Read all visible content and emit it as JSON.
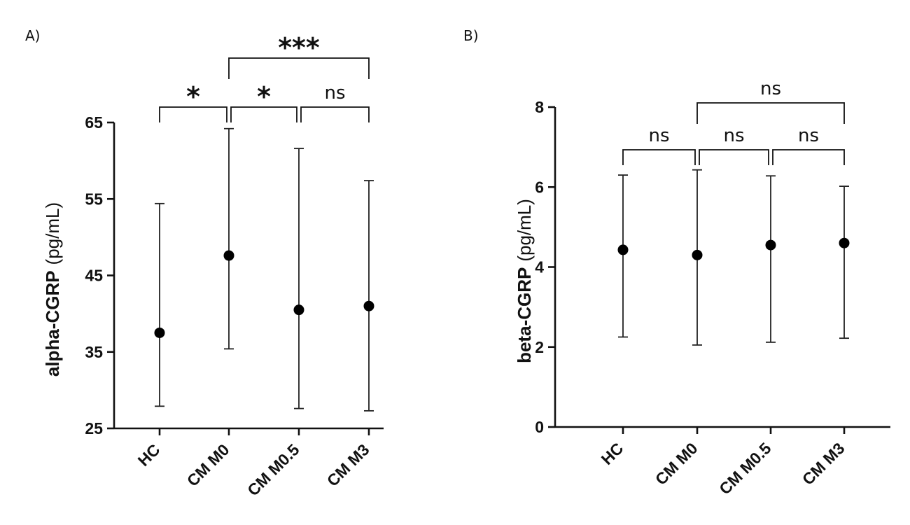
{
  "chart_data": [
    {
      "panel": "A)",
      "type": "scatter",
      "categories": [
        "HC",
        "CM M0",
        "CM M0.5",
        "CM M3"
      ],
      "ylabel_bold": "alpha-CGRP",
      "ylabel_unit": "(pg/mL)",
      "ylim": [
        25,
        65
      ],
      "yticks": [
        25,
        35,
        45,
        55,
        65
      ],
      "grid": false,
      "series": [
        {
          "values": [
            37.5,
            47.6,
            40.5,
            41.0
          ],
          "error_low": [
            27.9,
            35.4,
            27.6,
            27.3
          ],
          "error_high": [
            54.4,
            64.2,
            61.6,
            57.4
          ]
        }
      ],
      "comparisons": [
        {
          "from": 0,
          "to": 1,
          "label": "*",
          "level": 1
        },
        {
          "from": 1,
          "to": 2,
          "label": "*",
          "level": 1
        },
        {
          "from": 2,
          "to": 3,
          "label": "ns",
          "level": 1
        },
        {
          "from": 1,
          "to": 3,
          "label": "***",
          "level": 2
        }
      ]
    },
    {
      "panel": "B)",
      "type": "scatter",
      "categories": [
        "HC",
        "CM M0",
        "CM M0.5",
        "CM M3"
      ],
      "ylabel_bold": "beta-CGRP",
      "ylabel_unit": "(pg/mL)",
      "ylim": [
        0,
        8
      ],
      "yticks": [
        0,
        2,
        4,
        6,
        8
      ],
      "grid": false,
      "series": [
        {
          "values": [
            4.43,
            4.3,
            4.55,
            4.6
          ],
          "error_low": [
            2.25,
            2.05,
            2.12,
            2.22
          ],
          "error_high": [
            6.3,
            6.43,
            6.28,
            6.02
          ]
        }
      ],
      "comparisons": [
        {
          "from": 0,
          "to": 1,
          "label": "ns",
          "level": 1
        },
        {
          "from": 1,
          "to": 2,
          "label": "ns",
          "level": 1
        },
        {
          "from": 2,
          "to": 3,
          "label": "ns",
          "level": 1
        },
        {
          "from": 1,
          "to": 3,
          "label": "ns",
          "level": 2
        }
      ]
    }
  ]
}
